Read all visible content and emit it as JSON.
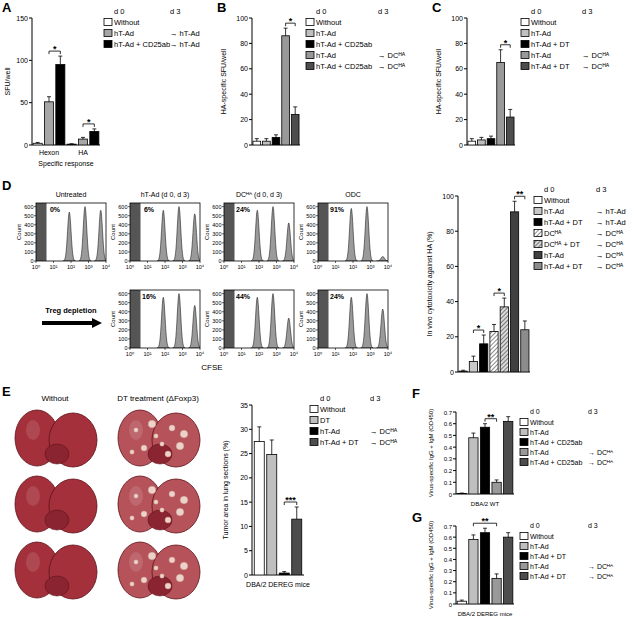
{
  "chart_data": [
    {
      "panel": "A",
      "type": "bar",
      "y_label": "SFU/well",
      "x_label": "Specific response",
      "categories": [
        "Hexon",
        "HA"
      ],
      "ylim": [
        0,
        150
      ],
      "yticks": [
        0,
        50,
        100,
        150
      ],
      "legend": "right",
      "legend_header": [
        "d 0",
        "d 3"
      ],
      "series": [
        {
          "name": "Without",
          "color": "#ffffff",
          "values": [
            2,
            1
          ],
          "errors": [
            1,
            0.5
          ]
        },
        {
          "name": "hT-Ad",
          "name_d3": "→ hT-Ad",
          "color": "#a6a6a6",
          "values": [
            51,
            7
          ],
          "errors": [
            6,
            2
          ]
        },
        {
          "name": "hT-Ad + CD25ab",
          "name_d3": "→ hT-Ad",
          "color": "#000000",
          "values": [
            95,
            16
          ],
          "errors": [
            10,
            3
          ]
        }
      ],
      "significance": [
        {
          "category": 0,
          "from": 1,
          "to": 2,
          "label": "*"
        },
        {
          "category": 1,
          "from": 1,
          "to": 2,
          "label": "*"
        }
      ]
    },
    {
      "panel": "B",
      "type": "bar",
      "y_label": "HA-specific SFU/well",
      "categories": [
        null
      ],
      "ylim": [
        0,
        100
      ],
      "yticks": [
        0,
        20,
        40,
        60,
        80,
        100
      ],
      "legend": "right",
      "legend_header": [
        "d 0",
        "d 3"
      ],
      "series": [
        {
          "name": "Without",
          "color": "#ffffff",
          "values": [
            3
          ],
          "errors": [
            2
          ]
        },
        {
          "name": "hT-Ad",
          "color": "#bfbfbf",
          "values": [
            3
          ],
          "errors": [
            2
          ]
        },
        {
          "name": "hT-Ad + CD25ab",
          "color": "#000000",
          "values": [
            6
          ],
          "errors": [
            2
          ]
        },
        {
          "name": "hT-Ad",
          "name_d3": "→ DCᴴᴬ",
          "color": "#999999",
          "values": [
            86
          ],
          "errors": [
            6
          ]
        },
        {
          "name": "hT-Ad + CD25ab",
          "name_d3": "→ DCᴴᴬ",
          "color": "#4d4d4d",
          "values": [
            24
          ],
          "errors": [
            6
          ]
        }
      ],
      "significance": [
        {
          "from": 3,
          "to": 4,
          "label": "*"
        }
      ]
    },
    {
      "panel": "C",
      "type": "bar",
      "y_label": "HA-specific SFU/well",
      "categories": [
        null
      ],
      "ylim": [
        0,
        100
      ],
      "yticks": [
        0,
        20,
        40,
        60,
        80,
        100
      ],
      "legend": "right",
      "legend_header": [
        "d 0",
        "d 3"
      ],
      "series": [
        {
          "name": "Without",
          "color": "#ffffff",
          "values": [
            3
          ],
          "errors": [
            2
          ]
        },
        {
          "name": "hT-Ad",
          "color": "#bfbfbf",
          "values": [
            4
          ],
          "errors": [
            2
          ]
        },
        {
          "name": "hT-Ad + DT",
          "color": "#000000",
          "values": [
            5
          ],
          "errors": [
            2
          ]
        },
        {
          "name": "hT-Ad",
          "name_d3": "→ DCᴴᴬ",
          "color": "#999999",
          "values": [
            65
          ],
          "errors": [
            10
          ]
        },
        {
          "name": "hT-Ad + DT",
          "name_d3": "→ DCᴴᴬ",
          "color": "#4d4d4d",
          "values": [
            22
          ],
          "errors": [
            6
          ]
        }
      ],
      "significance": [
        {
          "from": 3,
          "to": 4,
          "label": "*"
        }
      ]
    },
    {
      "panel": "D",
      "type": "flow_histogram",
      "x_label": "CFSE",
      "y_label": "Count",
      "log": "x",
      "xlim": [
        1,
        10000
      ],
      "xticks": [
        {
          "value": 1,
          "label": "10⁰"
        },
        {
          "value": 10,
          "label": "10¹"
        },
        {
          "value": 100,
          "label": "10²"
        },
        {
          "value": 1000,
          "label": "10³"
        },
        {
          "value": 10000,
          "label": "10⁴"
        }
      ],
      "ylim": [
        0,
        640
      ],
      "yticks": [
        0,
        100,
        200,
        300,
        400,
        500,
        600
      ],
      "columns": [
        "Untreated",
        "hT-Ad (d 0, d 3)",
        "DCᴴᴬ (d 0, d 3)",
        "ODC"
      ],
      "x": [
        80,
        630,
        5000
      ],
      "rows": [
        {
          "panels": [
            {
              "label": "0%",
              "values": [
                540,
                600,
                560
              ]
            },
            {
              "label": "6%",
              "values": [
                560,
                600,
                520
              ]
            },
            {
              "label": "24%",
              "values": [
                560,
                600,
                420
              ]
            },
            {
              "label": "91%",
              "values": [
                580,
                600,
                50
              ]
            }
          ]
        },
        {
          "label": "Treg depletion",
          "panels": [
            null,
            {
              "label": "16%",
              "values": [
                560,
                600,
                470
              ]
            },
            {
              "label": "44%",
              "values": [
                560,
                600,
                330
              ]
            },
            {
              "label": "24%",
              "values": [
                560,
                600,
                430
              ]
            }
          ]
        }
      ]
    },
    {
      "type": "bar",
      "y_label": "In vivo cytotoxicity against HA (%)",
      "categories": [
        null
      ],
      "ylim": [
        0,
        100
      ],
      "yticks": [
        0,
        20,
        40,
        60,
        80,
        100
      ],
      "legend": "right",
      "legend_header": [
        "d 0",
        "d 3"
      ],
      "series": [
        {
          "name": "Without",
          "color": "#ffffff",
          "values": [
            0.5
          ],
          "errors": [
            0.5
          ]
        },
        {
          "name": "hT-Ad",
          "name_d3": "→ hT-Ad",
          "color": "#c8c8c8",
          "values": [
            6
          ],
          "errors": [
            3
          ]
        },
        {
          "name": "hT-Ad + DT",
          "name_d3": "→ hT-Ad",
          "color": "#000000",
          "values": [
            16
          ],
          "errors": [
            5
          ]
        },
        {
          "name": "DCᴴᴬ",
          "name_d3": "→ DCᴴᴬ",
          "color": "#ffffff",
          "line_style": "hatched",
          "values": [
            23
          ],
          "errors": [
            4
          ]
        },
        {
          "name": "DCᴴᴬ + DT",
          "name_d3": "→ DCᴴᴬ",
          "color": "#d9d9d9",
          "line_style": "hatched",
          "values": [
            37
          ],
          "errors": [
            5
          ]
        },
        {
          "name": "hT-Ad",
          "name_d3": "→ DCᴴᴬ",
          "color": "#404040",
          "values": [
            91
          ],
          "errors": [
            6
          ]
        },
        {
          "name": "hT-Ad + DT",
          "name_d3": "→ DCᴴᴬ",
          "color": "#8c8c8c",
          "values": [
            24
          ],
          "errors": [
            5
          ]
        }
      ],
      "significance": [
        {
          "from": 1,
          "to": 2,
          "label": "*"
        },
        {
          "from": 3,
          "to": 4,
          "label": "*"
        },
        {
          "from": 5,
          "to": 6,
          "label": "**"
        }
      ]
    },
    {
      "panel": "E",
      "type": "bar",
      "image_labels": [
        "Without",
        "DT treatment (ΔFoxp3)"
      ],
      "y_label": "Tumor area in lung sections (%)",
      "x_label": "DBA/2 DEREG mice",
      "categories": [
        null
      ],
      "ylim": [
        0,
        35
      ],
      "yticks": [
        0,
        5,
        10,
        15,
        20,
        25,
        30,
        35
      ],
      "legend": "right",
      "legend_header": [
        "d 0",
        "d 3"
      ],
      "series": [
        {
          "name": "Without",
          "color": "#ffffff",
          "values": [
            27.5
          ],
          "errors": [
            3
          ]
        },
        {
          "name": "DT",
          "color": "#bfbfbf",
          "values": [
            24.8
          ],
          "errors": [
            3
          ]
        },
        {
          "name": "hT-Ad",
          "name_d3": "→ DCᴴᴬ",
          "color": "#000000",
          "values": [
            0.4
          ],
          "errors": [
            0.3
          ]
        },
        {
          "name": "hT-Ad + DT",
          "name_d3": "→ DCᴴᴬ",
          "color": "#4d4d4d",
          "values": [
            11.5
          ],
          "errors": [
            2.5
          ]
        }
      ],
      "significance": [
        {
          "from": 2,
          "to": 3,
          "label": "***"
        }
      ]
    },
    {
      "panel": "F",
      "type": "bar",
      "y_label": "Virus-specific IgG + IgM (OD450)",
      "x_label": "DBA/2 WT",
      "categories": [
        null
      ],
      "ylim": [
        0,
        0.7
      ],
      "yticks": [
        0,
        0.1,
        0.2,
        0.3,
        0.4,
        0.5,
        0.6,
        0.7
      ],
      "legend": "right",
      "legend_header": [
        "d 0",
        "d 3"
      ],
      "series": [
        {
          "name": "Without",
          "color": "#ffffff",
          "values": [
            0.005
          ],
          "errors": [
            0.003
          ]
        },
        {
          "name": "hT-Ad",
          "color": "#bfbfbf",
          "values": [
            0.48
          ],
          "errors": [
            0.04
          ]
        },
        {
          "name": "hT-Ad + CD25ab",
          "color": "#000000",
          "values": [
            0.57
          ],
          "errors": [
            0.03
          ]
        },
        {
          "name": "hT-Ad",
          "name_d3": "→ DCᴴᴬ",
          "color": "#999999",
          "values": [
            0.1
          ],
          "errors": [
            0.02
          ]
        },
        {
          "name": "hT-Ad + CD25ab",
          "name_d3": "→ DCᴴᴬ",
          "color": "#4d4d4d",
          "values": [
            0.62
          ],
          "errors": [
            0.04
          ]
        }
      ],
      "significance": [
        {
          "from": 2,
          "to": 3,
          "label": "**"
        }
      ]
    },
    {
      "panel": "G",
      "type": "bar",
      "y_label": "Virus-specific IgG + IgM (OD450)",
      "x_label": "DBA/2 DEREG mice",
      "categories": [
        null
      ],
      "ylim": [
        0,
        0.7
      ],
      "yticks": [
        0,
        0.1,
        0.2,
        0.3,
        0.4,
        0.5,
        0.6,
        0.7
      ],
      "legend": "right",
      "legend_header": [
        "d 0",
        "d 3"
      ],
      "series": [
        {
          "name": "Without",
          "color": "#ffffff",
          "values": [
            0.025
          ],
          "errors": [
            0.01
          ]
        },
        {
          "name": "hT-Ad",
          "color": "#bfbfbf",
          "values": [
            0.58
          ],
          "errors": [
            0.04
          ]
        },
        {
          "name": "hT-Ad + DT",
          "color": "#000000",
          "values": [
            0.64
          ],
          "errors": [
            0.04
          ]
        },
        {
          "name": "hT-Ad",
          "name_d3": "→ DCᴴᴬ",
          "color": "#999999",
          "values": [
            0.23
          ],
          "errors": [
            0.04
          ]
        },
        {
          "name": "hT-Ad + DT",
          "name_d3": "→ DCᴴᴬ",
          "color": "#4d4d4d",
          "values": [
            0.6
          ],
          "errors": [
            0.04
          ]
        }
      ],
      "significance": [
        {
          "from": 1,
          "to": 3,
          "label": "**"
        }
      ]
    }
  ]
}
